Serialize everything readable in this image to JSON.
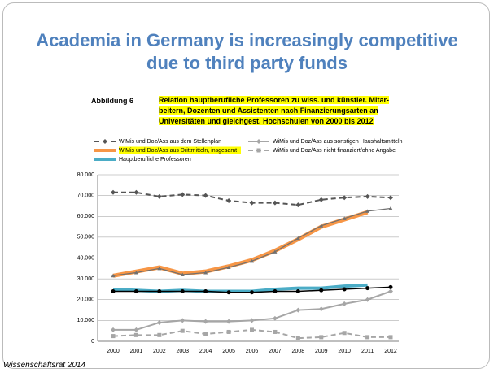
{
  "title": [
    "Academia in Germany is increasingly competitive",
    "due to third party funds"
  ],
  "figure_label": "Abbildung 6",
  "caption": [
    "Relation hauptberufliche Professoren zu wiss. und künstler. Mitar-",
    "beitern, Dozenten und Assistenten nach Finanzierungsarten an",
    "Universitäten und gleichgest. Hochschulen von 2000 bis 2012"
  ],
  "source": "Wissenschaftsrat 2014",
  "chart_data": {
    "type": "line",
    "categories": [
      "2000",
      "2001",
      "2002",
      "2003",
      "2004",
      "2005",
      "2006",
      "2007",
      "2008",
      "2009",
      "2010",
      "2011",
      "2012"
    ],
    "ylim": [
      0,
      80000
    ],
    "yticks": [
      {
        "value": 0,
        "label": "0"
      },
      {
        "value": 10000,
        "label": "10.000"
      },
      {
        "value": 20000,
        "label": "20.000"
      },
      {
        "value": 30000,
        "label": "30.000"
      },
      {
        "value": 40000,
        "label": "40.000"
      },
      {
        "value": 50000,
        "label": "50.000"
      },
      {
        "value": 60000,
        "label": "60.000"
      },
      {
        "value": 70000,
        "label": "70.000"
      },
      {
        "value": 80000,
        "label": "80.000"
      }
    ],
    "grid": true,
    "series": [
      {
        "name": "WiMis und Doz/Ass aus dem Stellenplan",
        "color": "#555555",
        "dash": "6 4",
        "marker": "diamond",
        "width": 2,
        "values": [
          71500,
          71500,
          69500,
          70500,
          70000,
          67500,
          66500,
          66500,
          65500,
          68000,
          69000,
          69500,
          69000
        ]
      },
      {
        "name": "WiMis und Doz/Ass aus sonstigen Haushaltsmitteln",
        "color": "#a6a6a6",
        "dash": "none",
        "marker": "diamond",
        "width": 2,
        "values": [
          5500,
          5500,
          9000,
          10000,
          9500,
          9500,
          10000,
          11000,
          15000,
          15500,
          18000,
          20000,
          24000
        ]
      },
      {
        "name": "WiMis und Doz/Ass aus Drittmitteln, insgesamt",
        "color": "#f79646",
        "dash": "none",
        "marker": "none",
        "width": 5,
        "values": [
          31500,
          33500,
          35500,
          32500,
          33500,
          36000,
          39000,
          43500,
          49000,
          55000,
          58500,
          62000,
          null
        ]
      },
      {
        "name": "WiMis und Doz/Ass nicht finanziert/ohne Angabe",
        "color": "#a6a6a6",
        "dash": "6 4",
        "marker": "square",
        "width": 2,
        "values": [
          2500,
          3000,
          3000,
          5000,
          3500,
          4500,
          5500,
          4500,
          1500,
          2000,
          4000,
          2000,
          2000
        ]
      },
      {
        "name": "Hauptberufliche Professoren",
        "color": "#4bacc6",
        "dash": "none",
        "marker": "none",
        "width": 4,
        "values": [
          25000,
          24500,
          24000,
          24500,
          24000,
          24000,
          24000,
          25000,
          25500,
          25500,
          26500,
          27000,
          null
        ]
      },
      {
        "color": "#000000",
        "dash": "none",
        "marker": "circle",
        "width": 1.5,
        "values": [
          24000,
          24000,
          24000,
          24000,
          24000,
          23500,
          23500,
          24000,
          24000,
          24500,
          25000,
          25500,
          26000
        ]
      },
      {
        "color": "#707070",
        "dash": "none",
        "marker": "triangle",
        "width": 1.2,
        "values": [
          31500,
          33000,
          35000,
          32000,
          33000,
          35500,
          38500,
          43000,
          49500,
          55500,
          59000,
          62500,
          63800
        ]
      }
    ]
  }
}
